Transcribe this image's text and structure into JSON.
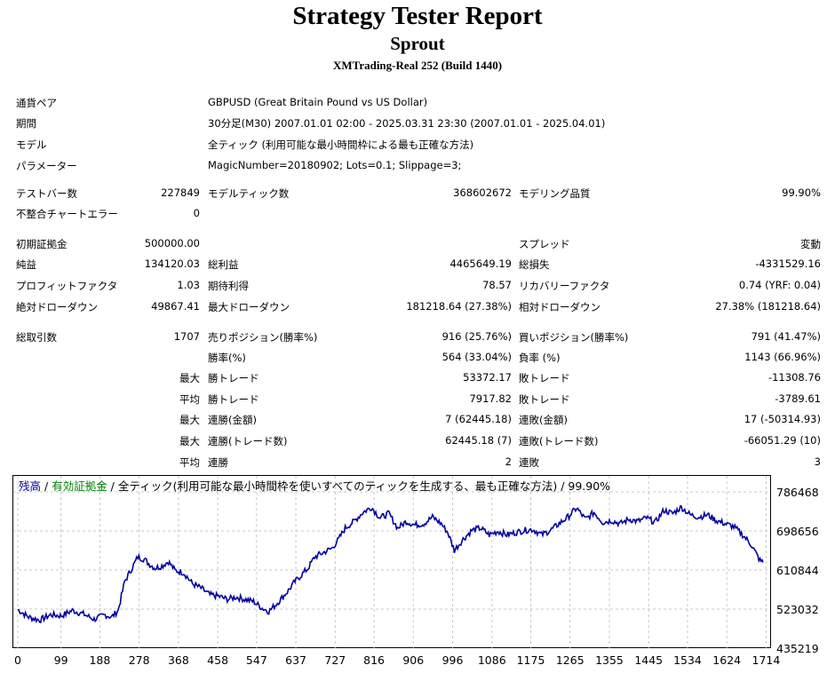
{
  "header": {
    "title": "Strategy Tester Report",
    "subtitle": "Sprout",
    "server": "XMTrading-Real 252 (Build 1440)"
  },
  "info": [
    {
      "label": "通貨ペア",
      "value": "GBPUSD (Great Britain Pound vs US Dollar)"
    },
    {
      "label": "期間",
      "value": "30分足(M30) 2007.01.01 02:00 - 2025.03.31 23:30 (2007.01.01 - 2025.04.01)"
    },
    {
      "label": "モデル",
      "value": "全ティック (利用可能な最小時間枠による最も正確な方法)"
    },
    {
      "label": "パラメーター",
      "value": "MagicNumber=20180902; Lots=0.1; Slippage=3;"
    }
  ],
  "test": {
    "bars_label": "テストバー数",
    "bars": "227849",
    "ticks_label": "モデルティック数",
    "ticks": "368602672",
    "quality_label": "モデリング品質",
    "quality": "99.90%",
    "mismatch_label": "不整合チャートエラー",
    "mismatch": "0"
  },
  "stats": {
    "deposit_label": "初期証拠金",
    "deposit": "500000.00",
    "spread_label": "スプレッド",
    "spread": "変動",
    "net_label": "純益",
    "net": "134120.03",
    "gross_profit_label": "総利益",
    "gross_profit": "4465649.19",
    "gross_loss_label": "総損失",
    "gross_loss": "-4331529.16",
    "pf_label": "プロフィットファクタ",
    "pf": "1.03",
    "exp_label": "期待利得",
    "exp": "78.57",
    "rf_label": "リカバリーファクタ",
    "rf": "0.74 (YRF: 0.04)",
    "abs_dd_label": "絶対ドローダウン",
    "abs_dd": "49867.41",
    "max_dd_label": "最大ドローダウン",
    "max_dd": "181218.64 (27.38%)",
    "rel_dd_label": "相対ドローダウン",
    "rel_dd": "27.38% (181218.64)"
  },
  "trades": {
    "total_label": "総取引数",
    "total": "1707",
    "short_label": "売りポジション(勝率%)",
    "short": "916 (25.76%)",
    "long_label": "買いポジション(勝率%)",
    "long": "791 (41.47%)",
    "win_pct_label": "勝率(%)",
    "win_pct": "564 (33.04%)",
    "loss_pct_label": "負率 (%)",
    "loss_pct": "1143 (66.96%)",
    "max_label": "最大",
    "avg_label": "平均",
    "win_trade_label": "勝トレード",
    "loss_trade_label": "敗トレード",
    "max_win": "53372.17",
    "max_loss": "-11308.76",
    "avg_win": "7917.82",
    "avg_loss": "-3789.61",
    "cons_win_amt_label": "連勝(金額)",
    "cons_win_amt": "7 (62445.18)",
    "cons_loss_amt_label": "連敗(金額)",
    "cons_loss_amt": "17 (-50314.93)",
    "cons_win_cnt_label": "連勝(トレード数)",
    "cons_win_cnt": "62445.18 (7)",
    "cons_loss_cnt_label": "連敗(トレード数)",
    "cons_loss_cnt": "-66051.29 (10)",
    "avg_cons_win_label": "連勝",
    "avg_cons_win": "2",
    "avg_cons_loss_label": "連敗",
    "avg_cons_loss": "3"
  },
  "chart_data": {
    "type": "line",
    "legend": {
      "balance": "残高",
      "sep1": " / ",
      "equity": "有効証拠金",
      "sep2": " / 全ティック(利用可能な最小時間枠を使いすべてのティックを生成する、最も正確な方法) / 99.90%"
    },
    "colors": {
      "balance": "#0000a0",
      "equity": "#008000",
      "grid": "#c8c8c8"
    },
    "x_ticks": [
      0,
      99,
      188,
      278,
      368,
      458,
      547,
      637,
      727,
      816,
      906,
      996,
      1086,
      1175,
      1265,
      1355,
      1445,
      1534,
      1624,
      1714
    ],
    "y_ticks": [
      786468,
      698656,
      610844,
      523032,
      435219
    ],
    "xlim": [
      0,
      1707
    ],
    "ylim": [
      435219,
      786468
    ],
    "series": [
      {
        "name": "残高",
        "x": [
          0,
          25,
          50,
          75,
          100,
          125,
          150,
          175,
          200,
          215,
          230,
          245,
          260,
          275,
          290,
          300,
          315,
          330,
          345,
          360,
          380,
          400,
          420,
          440,
          460,
          480,
          500,
          520,
          540,
          560,
          575,
          590,
          605,
          620,
          635,
          650,
          665,
          680,
          700,
          720,
          735,
          750,
          770,
          790,
          810,
          830,
          850,
          870,
          890,
          910,
          930,
          950,
          970,
          985,
          1000,
          1020,
          1040,
          1060,
          1080,
          1100,
          1120,
          1140,
          1160,
          1180,
          1200,
          1220,
          1240,
          1260,
          1280,
          1300,
          1320,
          1340,
          1360,
          1380,
          1400,
          1420,
          1440,
          1460,
          1480,
          1500,
          1520,
          1540,
          1560,
          1580,
          1600,
          1620,
          1640,
          1660,
          1680,
          1700,
          1707
        ],
        "y": [
          522000,
          505000,
          498000,
          510000,
          508000,
          520000,
          512000,
          500000,
          510000,
          505000,
          520000,
          585000,
          612000,
          640000,
          635000,
          625000,
          615000,
          620000,
          630000,
          610000,
          605000,
          580000,
          570000,
          555000,
          552000,
          545000,
          550000,
          545000,
          540000,
          525000,
          518000,
          532000,
          548000,
          565000,
          585000,
          600000,
          615000,
          640000,
          650000,
          660000,
          680000,
          705000,
          720000,
          740000,
          752000,
          728000,
          738000,
          705000,
          720000,
          712000,
          715000,
          730000,
          715000,
          695000,
          655000,
          680000,
          700000,
          705000,
          690000,
          698000,
          690000,
          695000,
          700000,
          702000,
          690000,
          700000,
          715000,
          730000,
          750000,
          725000,
          740000,
          718000,
          722000,
          715000,
          725000,
          720000,
          728000,
          718000,
          745000,
          738000,
          752000,
          735000,
          730000,
          735000,
          722000,
          715000,
          708000,
          690000,
          668000,
          632000,
          628000
        ]
      }
    ]
  }
}
